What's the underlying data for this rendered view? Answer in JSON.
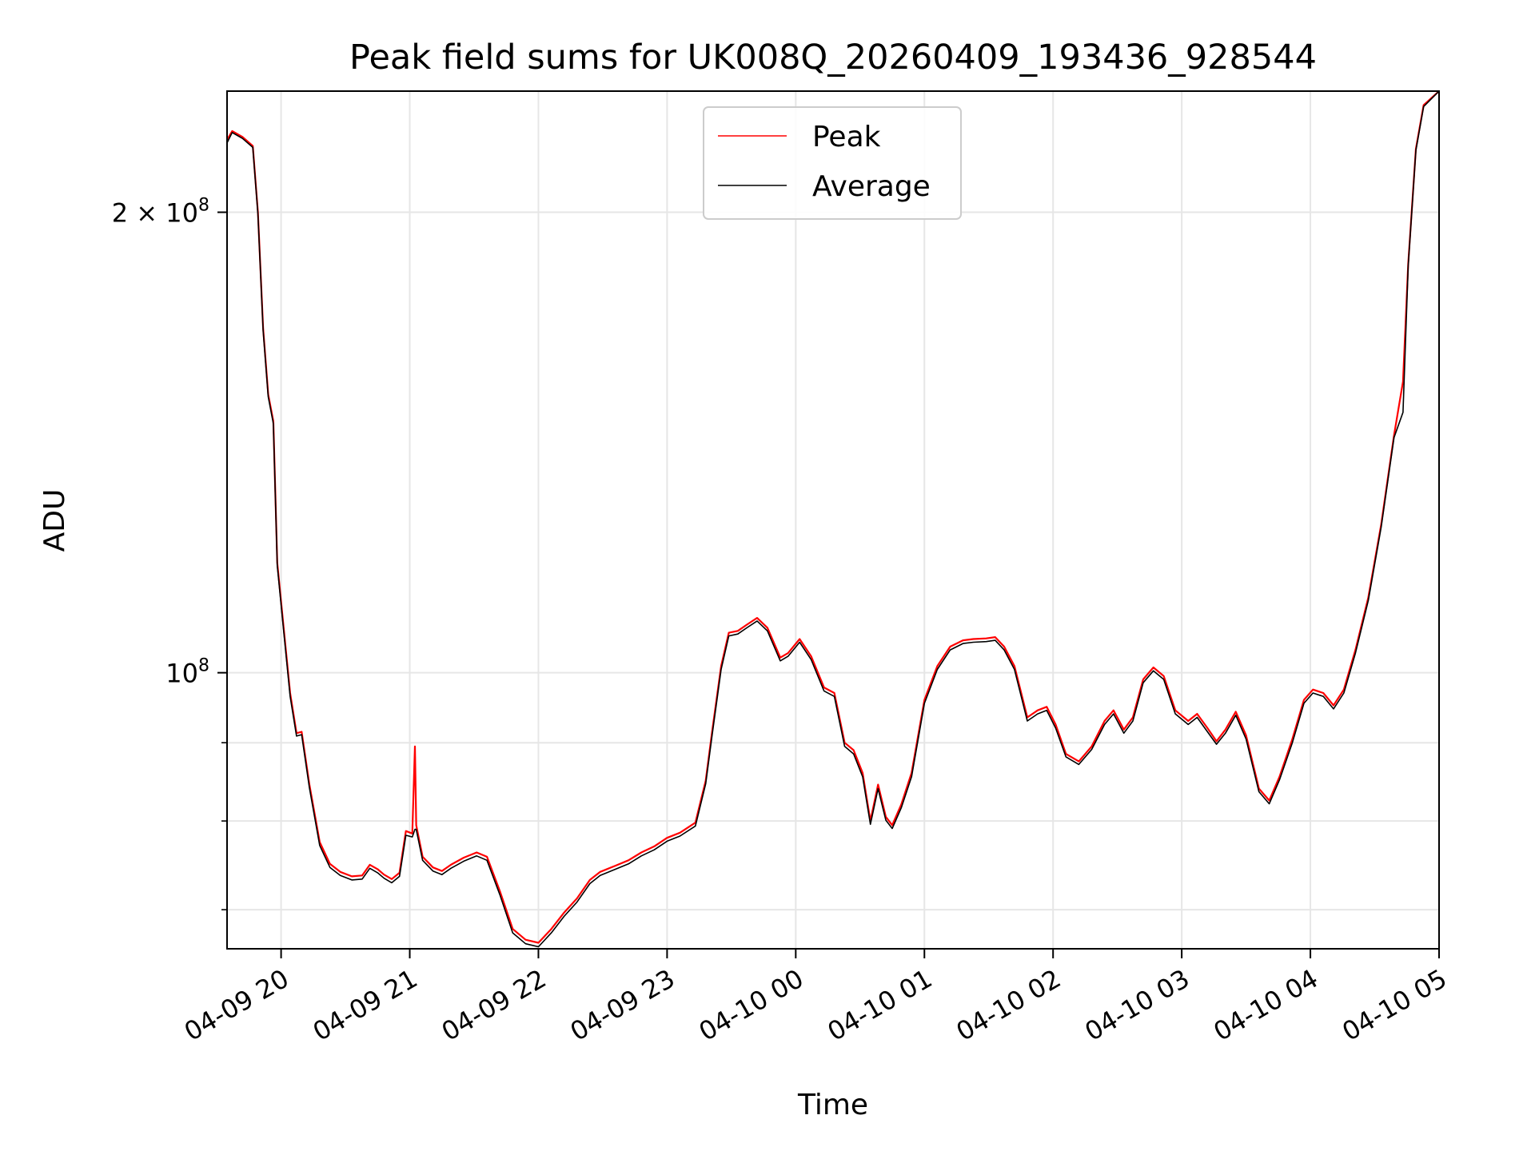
{
  "chart_data": {
    "type": "line",
    "title": "Peak field sums for UK008Q_20260409_193436_928544",
    "xlabel": "Time",
    "ylabel": "ADU",
    "yscale": "log",
    "ylim": [
      66000000,
      240000000
    ],
    "xlim_hours": [
      19.58,
      29.0
    ],
    "x_ticks": [
      {
        "hour": 20,
        "label": "04-09 20"
      },
      {
        "hour": 21,
        "label": "04-09 21"
      },
      {
        "hour": 22,
        "label": "04-09 22"
      },
      {
        "hour": 23,
        "label": "04-09 23"
      },
      {
        "hour": 24,
        "label": "04-10 00"
      },
      {
        "hour": 25,
        "label": "04-10 01"
      },
      {
        "hour": 26,
        "label": "04-10 02"
      },
      {
        "hour": 27,
        "label": "04-10 03"
      },
      {
        "hour": 28,
        "label": "04-10 04"
      },
      {
        "hour": 29,
        "label": "04-10 05"
      }
    ],
    "y_major_ticks": [
      {
        "value": 100000000,
        "base": "10",
        "exp": "8",
        "coef": ""
      },
      {
        "value": 200000000,
        "base": "10",
        "exp": "8",
        "coef": "2 × "
      }
    ],
    "y_minor_ticks": [
      70000000,
      80000000,
      90000000
    ],
    "grid": true,
    "legend": {
      "position": "upper center"
    },
    "series": [
      {
        "name": "Peak",
        "color": "#ff0000",
        "points": [
          [
            19.58,
            223
          ],
          [
            19.62,
            226
          ],
          [
            19.7,
            224
          ],
          [
            19.78,
            221
          ],
          [
            19.82,
            200
          ],
          [
            19.86,
            168
          ],
          [
            19.9,
            152
          ],
          [
            19.94,
            146
          ],
          [
            19.97,
            118
          ],
          [
            20.02,
            107
          ],
          [
            20.07,
            97
          ],
          [
            20.12,
            91.3
          ],
          [
            20.16,
            91.5
          ],
          [
            20.22,
            84.5
          ],
          [
            20.3,
            77.5
          ],
          [
            20.38,
            75.0
          ],
          [
            20.46,
            74.1
          ],
          [
            20.55,
            73.6
          ],
          [
            20.63,
            73.7
          ],
          [
            20.69,
            74.9
          ],
          [
            20.75,
            74.4
          ],
          [
            20.8,
            73.8
          ],
          [
            20.86,
            73.3
          ],
          [
            20.92,
            74.0
          ],
          [
            20.97,
            78.8
          ],
          [
            21.02,
            78.5
          ],
          [
            21.04,
            89.5
          ],
          [
            21.05,
            79.5
          ],
          [
            21.1,
            75.8
          ],
          [
            21.18,
            74.6
          ],
          [
            21.25,
            74.2
          ],
          [
            21.32,
            74.9
          ],
          [
            21.42,
            75.7
          ],
          [
            21.52,
            76.3
          ],
          [
            21.6,
            75.8
          ],
          [
            21.7,
            72.0
          ],
          [
            21.8,
            68.0
          ],
          [
            21.9,
            66.9
          ],
          [
            22.0,
            66.6
          ],
          [
            22.1,
            68.0
          ],
          [
            22.2,
            69.7
          ],
          [
            22.3,
            71.2
          ],
          [
            22.4,
            73.2
          ],
          [
            22.48,
            74.1
          ],
          [
            22.6,
            74.8
          ],
          [
            22.7,
            75.4
          ],
          [
            22.8,
            76.3
          ],
          [
            22.9,
            77.0
          ],
          [
            23.0,
            78.0
          ],
          [
            23.1,
            78.6
          ],
          [
            23.22,
            79.8
          ],
          [
            23.3,
            85.0
          ],
          [
            23.35,
            91.5
          ],
          [
            23.42,
            101
          ],
          [
            23.48,
            106.2
          ],
          [
            23.55,
            106.5
          ],
          [
            23.62,
            107.5
          ],
          [
            23.7,
            108.6
          ],
          [
            23.78,
            107.0
          ],
          [
            23.88,
            102.3
          ],
          [
            23.94,
            103.0
          ],
          [
            24.03,
            105.2
          ],
          [
            24.12,
            102.5
          ],
          [
            24.22,
            97.8
          ],
          [
            24.3,
            97.0
          ],
          [
            24.38,
            90.0
          ],
          [
            24.45,
            89.0
          ],
          [
            24.52,
            86.0
          ],
          [
            24.58,
            80.0
          ],
          [
            24.64,
            84.5
          ],
          [
            24.7,
            80.5
          ],
          [
            24.75,
            79.5
          ],
          [
            24.82,
            82.0
          ],
          [
            24.9,
            86.0
          ],
          [
            25.0,
            96.0
          ],
          [
            25.1,
            101.0
          ],
          [
            25.2,
            104.0
          ],
          [
            25.3,
            105.0
          ],
          [
            25.38,
            105.2
          ],
          [
            25.48,
            105.3
          ],
          [
            25.55,
            105.5
          ],
          [
            25.62,
            104.0
          ],
          [
            25.7,
            101.0
          ],
          [
            25.8,
            93.5
          ],
          [
            25.88,
            94.5
          ],
          [
            25.95,
            95.0
          ],
          [
            26.02,
            92.5
          ],
          [
            26.1,
            88.5
          ],
          [
            26.2,
            87.5
          ],
          [
            26.3,
            89.5
          ],
          [
            26.4,
            93.0
          ],
          [
            26.47,
            94.5
          ],
          [
            26.55,
            91.8
          ],
          [
            26.62,
            93.5
          ],
          [
            26.7,
            99.0
          ],
          [
            26.78,
            100.8
          ],
          [
            26.86,
            99.5
          ],
          [
            26.95,
            94.5
          ],
          [
            27.05,
            93.0
          ],
          [
            27.12,
            94.0
          ],
          [
            27.2,
            92.0
          ],
          [
            27.27,
            90.2
          ],
          [
            27.34,
            91.8
          ],
          [
            27.42,
            94.3
          ],
          [
            27.5,
            91.0
          ],
          [
            27.6,
            84.0
          ],
          [
            27.68,
            82.5
          ],
          [
            27.76,
            85.5
          ],
          [
            27.86,
            90.5
          ],
          [
            27.95,
            96.0
          ],
          [
            28.02,
            97.5
          ],
          [
            28.1,
            97.0
          ],
          [
            28.18,
            95.2
          ],
          [
            28.26,
            97.5
          ],
          [
            28.35,
            103.5
          ],
          [
            28.45,
            112.0
          ],
          [
            28.55,
            125.0
          ],
          [
            28.65,
            143.0
          ],
          [
            28.72,
            155.0
          ],
          [
            28.76,
            185.0
          ],
          [
            28.82,
            220.0
          ],
          [
            28.88,
            235.0
          ],
          [
            29.0,
            240.0
          ]
        ]
      },
      {
        "name": "Average",
        "color": "#000000",
        "points": [
          [
            19.58,
            222
          ],
          [
            19.62,
            225.5
          ],
          [
            19.7,
            223.5
          ],
          [
            19.78,
            220.5
          ],
          [
            19.82,
            199.5
          ],
          [
            19.86,
            167.5
          ],
          [
            19.9,
            151.5
          ],
          [
            19.94,
            145.5
          ],
          [
            19.97,
            117.5
          ],
          [
            20.02,
            106.5
          ],
          [
            20.07,
            96.5
          ],
          [
            20.12,
            90.9
          ],
          [
            20.16,
            91.1
          ],
          [
            20.22,
            84.1
          ],
          [
            20.3,
            77.1
          ],
          [
            20.38,
            74.6
          ],
          [
            20.46,
            73.7
          ],
          [
            20.55,
            73.2
          ],
          [
            20.63,
            73.3
          ],
          [
            20.69,
            74.5
          ],
          [
            20.75,
            74.0
          ],
          [
            20.8,
            73.4
          ],
          [
            20.86,
            72.9
          ],
          [
            20.92,
            73.6
          ],
          [
            20.97,
            78.3
          ],
          [
            21.02,
            78.1
          ],
          [
            21.04,
            79.0
          ],
          [
            21.05,
            79.0
          ],
          [
            21.1,
            75.4
          ],
          [
            21.18,
            74.2
          ],
          [
            21.25,
            73.8
          ],
          [
            21.32,
            74.5
          ],
          [
            21.42,
            75.3
          ],
          [
            21.52,
            75.9
          ],
          [
            21.6,
            75.4
          ],
          [
            21.7,
            71.6
          ],
          [
            21.8,
            67.6
          ],
          [
            21.9,
            66.5
          ],
          [
            22.0,
            66.2
          ],
          [
            22.1,
            67.6
          ],
          [
            22.2,
            69.3
          ],
          [
            22.3,
            70.8
          ],
          [
            22.4,
            72.8
          ],
          [
            22.48,
            73.7
          ],
          [
            22.6,
            74.4
          ],
          [
            22.7,
            75.0
          ],
          [
            22.8,
            75.9
          ],
          [
            22.9,
            76.6
          ],
          [
            23.0,
            77.6
          ],
          [
            23.1,
            78.2
          ],
          [
            23.22,
            79.4
          ],
          [
            23.3,
            84.6
          ],
          [
            23.35,
            91.0
          ],
          [
            23.42,
            100.5
          ],
          [
            23.48,
            105.7
          ],
          [
            23.55,
            106.0
          ],
          [
            23.62,
            107.0
          ],
          [
            23.7,
            108.1
          ],
          [
            23.78,
            106.5
          ],
          [
            23.88,
            101.8
          ],
          [
            23.94,
            102.5
          ],
          [
            24.03,
            104.7
          ],
          [
            24.12,
            102.0
          ],
          [
            24.22,
            97.3
          ],
          [
            24.3,
            96.5
          ],
          [
            24.38,
            89.5
          ],
          [
            24.45,
            88.5
          ],
          [
            24.52,
            85.5
          ],
          [
            24.58,
            79.6
          ],
          [
            24.64,
            84.0
          ],
          [
            24.7,
            80.1
          ],
          [
            24.75,
            79.1
          ],
          [
            24.82,
            81.6
          ],
          [
            24.9,
            85.5
          ],
          [
            25.0,
            95.5
          ],
          [
            25.1,
            100.5
          ],
          [
            25.2,
            103.5
          ],
          [
            25.3,
            104.5
          ],
          [
            25.38,
            104.7
          ],
          [
            25.48,
            104.8
          ],
          [
            25.55,
            105.0
          ],
          [
            25.62,
            103.5
          ],
          [
            25.7,
            100.5
          ],
          [
            25.8,
            93.0
          ],
          [
            25.88,
            94.0
          ],
          [
            25.95,
            94.5
          ],
          [
            26.02,
            92.0
          ],
          [
            26.1,
            88.1
          ],
          [
            26.2,
            87.1
          ],
          [
            26.3,
            89.1
          ],
          [
            26.4,
            92.5
          ],
          [
            26.47,
            94.0
          ],
          [
            26.55,
            91.3
          ],
          [
            26.62,
            93.0
          ],
          [
            26.7,
            98.5
          ],
          [
            26.78,
            100.3
          ],
          [
            26.86,
            99.0
          ],
          [
            26.95,
            94.0
          ],
          [
            27.05,
            92.5
          ],
          [
            27.12,
            93.5
          ],
          [
            27.2,
            91.5
          ],
          [
            27.27,
            89.8
          ],
          [
            27.34,
            91.3
          ],
          [
            27.42,
            93.8
          ],
          [
            27.5,
            90.5
          ],
          [
            27.6,
            83.6
          ],
          [
            27.68,
            82.1
          ],
          [
            27.76,
            85.1
          ],
          [
            27.86,
            90.0
          ],
          [
            27.95,
            95.5
          ],
          [
            28.02,
            97.0
          ],
          [
            28.1,
            96.5
          ],
          [
            28.18,
            94.7
          ],
          [
            28.26,
            97.0
          ],
          [
            28.35,
            103.0
          ],
          [
            28.45,
            111.5
          ],
          [
            28.55,
            124.5
          ],
          [
            28.65,
            142.5
          ],
          [
            28.72,
            148.0
          ],
          [
            28.76,
            184.5
          ],
          [
            28.82,
            219.5
          ],
          [
            28.88,
            234.5
          ],
          [
            29.0,
            240.0
          ]
        ]
      }
    ]
  }
}
